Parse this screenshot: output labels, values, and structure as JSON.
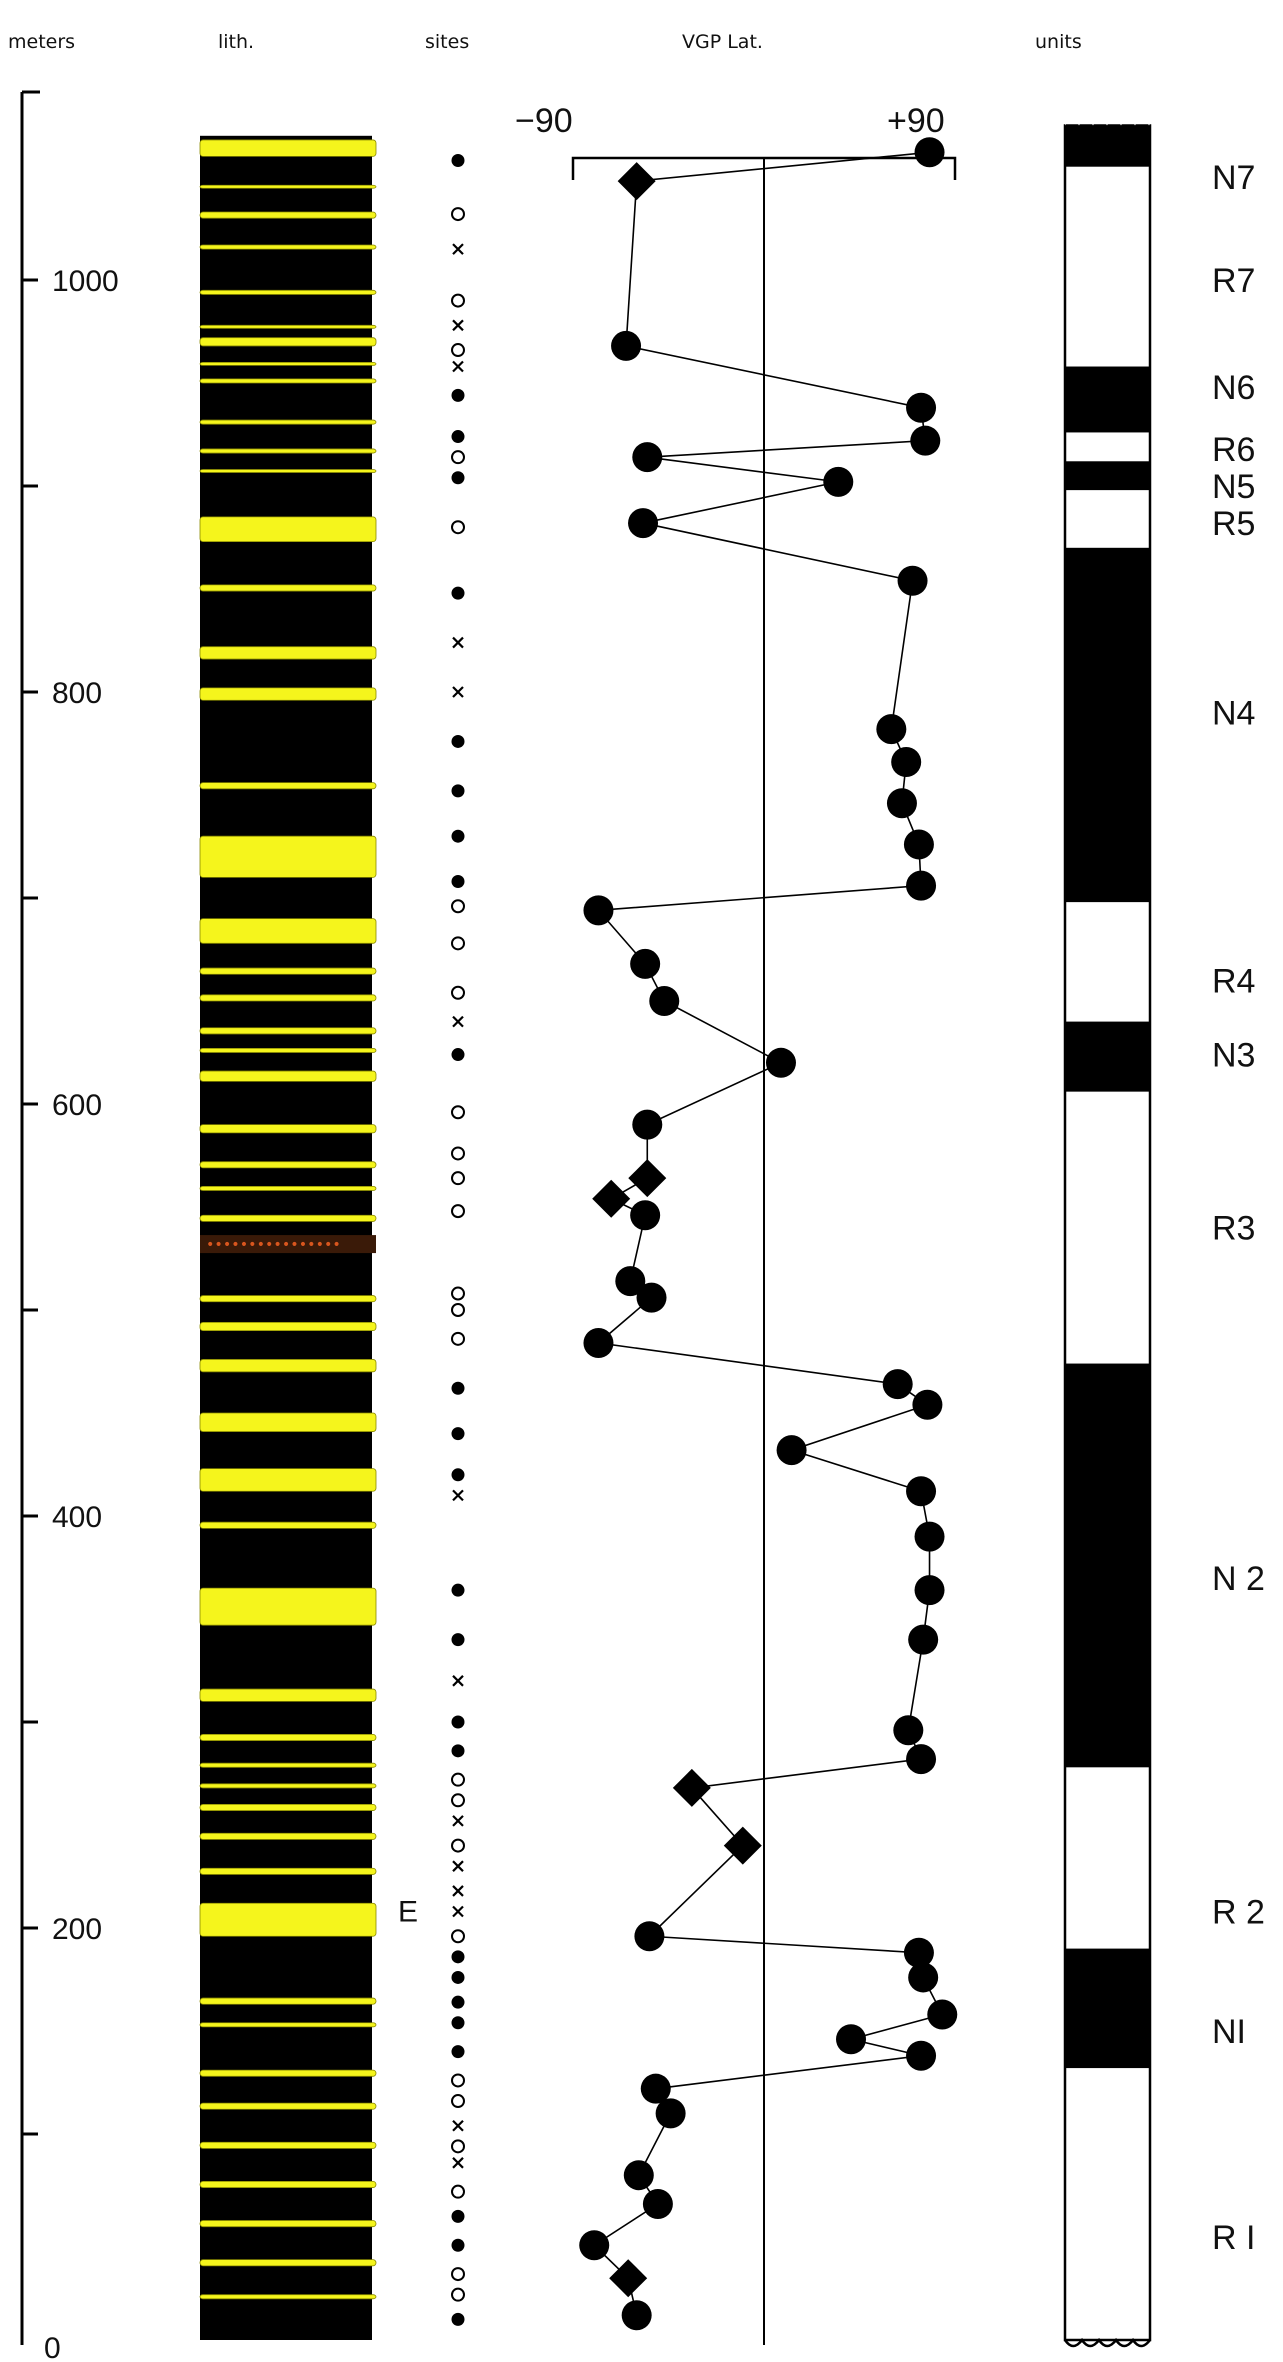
{
  "headers": {
    "meters": "meters",
    "lith": "lith.",
    "sites": "sites",
    "vgp": "VGP  Lat.",
    "units": "units"
  },
  "depth_axis": {
    "range_m": [
      0,
      1080
    ],
    "tick_labels": [
      "0",
      "200",
      "400",
      "600",
      "800",
      "1000"
    ]
  },
  "lat_axis": {
    "range_deg": [
      -90,
      90
    ],
    "left_label": "−90",
    "right_label": "+90"
  },
  "colors": {
    "ink": "#000000",
    "sandstone": "#f5f51c",
    "sandstone_edge": "#8a8a00",
    "marker_bed": "#d8561e"
  },
  "chart_data": {
    "type": "scatter",
    "xlabel": "VGP  Lat.",
    "ylabel": "meters",
    "xlim": [
      -90,
      90
    ],
    "ylim": [
      0,
      1080
    ],
    "series": [
      {
        "marker": "circle",
        "points": [
          [
            78,
            1062
          ],
          [
            -65,
            968
          ],
          [
            74,
            938
          ],
          [
            76,
            922
          ],
          [
            -55,
            914
          ],
          [
            35,
            902
          ],
          [
            -57,
            882
          ],
          [
            70,
            854
          ],
          [
            60,
            782
          ],
          [
            67,
            766
          ],
          [
            65,
            746
          ],
          [
            73,
            726
          ],
          [
            74,
            706
          ],
          [
            -78,
            694
          ],
          [
            -56,
            668
          ],
          [
            -47,
            650
          ],
          [
            8,
            620
          ],
          [
            -55,
            590
          ],
          [
            -56,
            546
          ],
          [
            -63,
            514
          ],
          [
            -53,
            506
          ],
          [
            -78,
            484
          ],
          [
            63,
            464
          ],
          [
            77,
            454
          ],
          [
            13,
            432
          ],
          [
            74,
            412
          ],
          [
            78,
            390
          ],
          [
            78,
            364
          ],
          [
            75,
            340
          ],
          [
            68,
            296
          ],
          [
            74,
            282
          ],
          [
            -54,
            196
          ],
          [
            73,
            188
          ],
          [
            75,
            176
          ],
          [
            84,
            158
          ],
          [
            41,
            146
          ],
          [
            74,
            138
          ],
          [
            -51,
            122
          ],
          [
            -44,
            110
          ],
          [
            -59,
            80
          ],
          [
            -50,
            66
          ],
          [
            -80,
            46
          ],
          [
            -60,
            12
          ]
        ]
      },
      {
        "marker": "diamond",
        "points": [
          [
            -60,
            1048
          ],
          [
            -34,
            268
          ],
          [
            -10,
            240
          ],
          [
            -55,
            564
          ],
          [
            -72,
            554
          ],
          [
            -64,
            30
          ]
        ]
      }
    ]
  },
  "lithology": {
    "sandstone_beds_m": [
      [
        1068,
        1060
      ],
      [
        1046,
        1045
      ],
      [
        1033,
        1030
      ],
      [
        1017,
        1015
      ],
      [
        995,
        993
      ],
      [
        978,
        977
      ],
      [
        972,
        968
      ],
      [
        960,
        959
      ],
      [
        952,
        950
      ],
      [
        932,
        930
      ],
      [
        918,
        916
      ],
      [
        908,
        907
      ],
      [
        885,
        873
      ],
      [
        852,
        849
      ],
      [
        822,
        816
      ],
      [
        802,
        796
      ],
      [
        756,
        753
      ],
      [
        730,
        710
      ],
      [
        690,
        678
      ],
      [
        666,
        663
      ],
      [
        653,
        650
      ],
      [
        637,
        634
      ],
      [
        627,
        625
      ],
      [
        616,
        611
      ],
      [
        590,
        586
      ],
      [
        572,
        569
      ],
      [
        560,
        558
      ],
      [
        546,
        543
      ],
      [
        507,
        504
      ],
      [
        494,
        490
      ],
      [
        476,
        470
      ],
      [
        450,
        441
      ],
      [
        423,
        412
      ],
      [
        397,
        394
      ],
      [
        365,
        347
      ],
      [
        316,
        310
      ],
      [
        294,
        291
      ],
      [
        280,
        278
      ],
      [
        270,
        268
      ],
      [
        260,
        257
      ],
      [
        246,
        243
      ],
      [
        229,
        226
      ],
      [
        212,
        196
      ],
      [
        166,
        163
      ],
      [
        154,
        152
      ],
      [
        131,
        128
      ],
      [
        115,
        112
      ],
      [
        96,
        93
      ],
      [
        77,
        74
      ],
      [
        58,
        55
      ],
      [
        39,
        36
      ],
      [
        22,
        20
      ]
    ],
    "marker_bed": {
      "depth_m": 532,
      "text": "••••••••••••••••"
    },
    "annotation": {
      "text": "E",
      "depth_m": 208
    }
  },
  "sites": {
    "symbols": [
      [
        "filled",
        1058
      ],
      [
        "open",
        1032
      ],
      [
        "cross",
        1015
      ],
      [
        "open",
        990
      ],
      [
        "cross",
        978
      ],
      [
        "open",
        966
      ],
      [
        "cross",
        958
      ],
      [
        "filled",
        944
      ],
      [
        "filled",
        924
      ],
      [
        "open",
        914
      ],
      [
        "filled",
        904
      ],
      [
        "open",
        880
      ],
      [
        "filled",
        848
      ],
      [
        "cross",
        824
      ],
      [
        "cross",
        800
      ],
      [
        "filled",
        776
      ],
      [
        "filled",
        752
      ],
      [
        "filled",
        730
      ],
      [
        "filled",
        708
      ],
      [
        "open",
        696
      ],
      [
        "open",
        678
      ],
      [
        "open",
        654
      ],
      [
        "cross",
        640
      ],
      [
        "filled",
        624
      ],
      [
        "open",
        596
      ],
      [
        "open",
        576
      ],
      [
        "open",
        564
      ],
      [
        "open",
        548
      ],
      [
        "open",
        508
      ],
      [
        "open",
        500
      ],
      [
        "open",
        486
      ],
      [
        "filled",
        462
      ],
      [
        "filled",
        440
      ],
      [
        "filled",
        420
      ],
      [
        "cross",
        410
      ],
      [
        "filled",
        364
      ],
      [
        "filled",
        340
      ],
      [
        "cross",
        320
      ],
      [
        "filled",
        300
      ],
      [
        "filled",
        286
      ],
      [
        "open",
        272
      ],
      [
        "open",
        262
      ],
      [
        "cross",
        252
      ],
      [
        "open",
        240
      ],
      [
        "cross",
        230
      ],
      [
        "cross",
        218
      ],
      [
        "cross",
        208
      ],
      [
        "open",
        196
      ],
      [
        "filled",
        186
      ],
      [
        "filled",
        176
      ],
      [
        "filled",
        164
      ],
      [
        "filled",
        154
      ],
      [
        "filled",
        140
      ],
      [
        "open",
        126
      ],
      [
        "open",
        116
      ],
      [
        "cross",
        104
      ],
      [
        "open",
        94
      ],
      [
        "cross",
        86
      ],
      [
        "open",
        72
      ],
      [
        "filled",
        60
      ],
      [
        "filled",
        46
      ],
      [
        "open",
        32
      ],
      [
        "open",
        22
      ],
      [
        "filled",
        10
      ]
    ]
  },
  "polarity": {
    "zones": [
      {
        "label": "N7",
        "pol": "N",
        "top": 1075,
        "bottom": 1055
      },
      {
        "label": "R7",
        "pol": "R",
        "top": 1055,
        "bottom": 958
      },
      {
        "label": "N6",
        "pol": "N",
        "top": 958,
        "bottom": 926
      },
      {
        "label": "R6",
        "pol": "R",
        "top": 926,
        "bottom": 912
      },
      {
        "label": "N5",
        "pol": "N",
        "top": 912,
        "bottom": 898
      },
      {
        "label": "R5",
        "pol": "R",
        "top": 898,
        "bottom": 870
      },
      {
        "label": "N4",
        "pol": "N",
        "top": 870,
        "bottom": 698
      },
      {
        "label": "R4",
        "pol": "R",
        "top": 698,
        "bottom": 640
      },
      {
        "label": "N3",
        "pol": "N",
        "top": 640,
        "bottom": 606
      },
      {
        "label": "R3",
        "pol": "R",
        "top": 606,
        "bottom": 474
      },
      {
        "label": "N 2",
        "pol": "N",
        "top": 474,
        "bottom": 278
      },
      {
        "label": "R 2",
        "pol": "R",
        "top": 278,
        "bottom": 190
      },
      {
        "label": "NI",
        "pol": "N",
        "top": 190,
        "bottom": 132
      },
      {
        "label": "R I",
        "pol": "R",
        "top": 132,
        "bottom": 0
      }
    ],
    "unit_label_depths": {
      "N7": 1050,
      "R7": 1000,
      "N6": 948,
      "R6": 918,
      "N5": 900,
      "R5": 882,
      "N4": 790,
      "R4": 660,
      "N3": 624,
      "R3": 540,
      "N 2": 370,
      "R 2": 208,
      "NI": 150,
      "R I": 50
    }
  }
}
